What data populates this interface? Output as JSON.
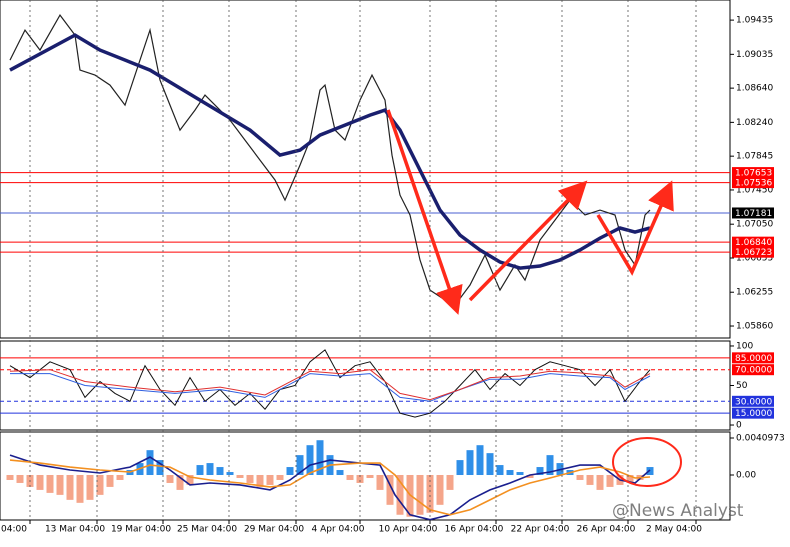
{
  "watermark": "@News Analyst",
  "chart_data": [
    {
      "type": "line",
      "xlim": [
        0,
        730
      ],
      "ylim": [
        1.0572,
        1.0967
      ],
      "yticks": [
        1.09435,
        1.09035,
        {
          "value": 1.0864,
          "label": "1.08640"
        },
        {
          "value": 1.0824,
          "label": "1.08240"
        },
        1.07845,
        {
          "value": 1.0745,
          "label": "1.07450"
        },
        {
          "value": 1.0705,
          "label": "1.07050"
        },
        1.06655,
        1.06255,
        {
          "value": 1.0586,
          "label": "1.05860"
        }
      ],
      "levels": [
        {
          "value": 1.07653,
          "color": "#ff0000"
        },
        {
          "value": 1.07536,
          "color": "#ff0000"
        },
        {
          "value": 1.07181,
          "color": "#4a5fd0",
          "box": "#000000"
        },
        {
          "value": 1.0684,
          "label": "1.06840",
          "color": "#ff0000"
        },
        {
          "value": 1.06723,
          "color": "#ff0000"
        }
      ],
      "series": [
        {
          "color": "#222222",
          "width": 1.2,
          "x": [
            10,
            25,
            40,
            60,
            75,
            80,
            95,
            110,
            125,
            140,
            150,
            160,
            170,
            180,
            195,
            205,
            215,
            230,
            245,
            260,
            275,
            285,
            300,
            310,
            320,
            325,
            335,
            345,
            360,
            372,
            385,
            392,
            400,
            410,
            420,
            430,
            445,
            455,
            470,
            485,
            500,
            515,
            525,
            540,
            555,
            570,
            585,
            600,
            615,
            625,
            635,
            645,
            650
          ],
          "values": [
            1.08968,
            1.09318,
            1.09084,
            1.09493,
            1.0926,
            1.08851,
            1.08792,
            1.08676,
            1.08442,
            1.08968,
            1.09318,
            1.08734,
            1.08442,
            1.0815,
            1.08383,
            1.08559,
            1.08442,
            1.08267,
            1.08033,
            1.07799,
            1.07566,
            1.07332,
            1.07741,
            1.08033,
            1.08617,
            1.08676,
            1.0815,
            1.08033,
            1.085,
            1.08792,
            1.085,
            1.07858,
            1.0739,
            1.07157,
            1.06631,
            1.0628,
            1.06164,
            1.06105,
            1.06339,
            1.06689,
            1.0628,
            1.06573,
            1.06397,
            1.06865,
            1.07098,
            1.07332,
            1.07157,
            1.07215,
            1.07157,
            1.06748,
            1.06573,
            1.07157,
            1.07215
          ]
        },
        {
          "color": "#1a1f6e",
          "width": 3.5,
          "x": [
            10,
            75,
            100,
            150,
            200,
            250,
            280,
            300,
            320,
            345,
            370,
            385,
            400,
            420,
            440,
            460,
            480,
            500,
            520,
            540,
            560,
            580,
            600,
            620,
            635,
            650
          ],
          "values": [
            1.08851,
            1.0926,
            1.09084,
            1.08851,
            1.085,
            1.0815,
            1.07858,
            1.07916,
            1.08091,
            1.08208,
            1.08325,
            1.08383,
            1.0815,
            1.07682,
            1.07215,
            1.06923,
            1.06748,
            1.06608,
            1.06537,
            1.06561,
            1.06631,
            1.06748,
            1.06888,
            1.07005,
            1.06958,
            1.07005
          ]
        }
      ]
    },
    {
      "type": "line",
      "xlim": [
        0,
        730
      ],
      "ylim": [
        -6.3,
        106.3
      ],
      "yticks": [
        100,
        50,
        0
      ],
      "levels": [
        {
          "value": 85,
          "label": "85.0000",
          "color": "#ff0000"
        },
        {
          "value": 70,
          "label": "70.0000",
          "color": "#ff0000",
          "dashed": true
        },
        {
          "value": 30,
          "label": "30.0000",
          "color": "#2233dd",
          "dashed": true
        },
        {
          "value": 15,
          "label": "15.0000",
          "color": "#2233dd"
        }
      ],
      "series": [
        {
          "color": "#111111",
          "width": 1,
          "x": [
            10,
            30,
            50,
            70,
            85,
            100,
            115,
            130,
            145,
            160,
            175,
            190,
            205,
            220,
            235,
            250,
            265,
            280,
            295,
            310,
            325,
            340,
            355,
            370,
            385,
            400,
            415,
            430,
            445,
            460,
            475,
            490,
            505,
            520,
            535,
            550,
            565,
            580,
            595,
            610,
            625,
            640,
            650
          ],
          "values": [
            75,
            60,
            80,
            70,
            35,
            55,
            40,
            30,
            75,
            45,
            25,
            60,
            30,
            45,
            25,
            40,
            20,
            45,
            50,
            80,
            95,
            60,
            75,
            80,
            55,
            15,
            10,
            15,
            30,
            50,
            70,
            45,
            65,
            50,
            70,
            80,
            75,
            70,
            50,
            70,
            30,
            55,
            70
          ]
        },
        {
          "color": "#2f5fe0",
          "width": 1,
          "x": [
            10,
            50,
            85,
            130,
            175,
            220,
            265,
            310,
            340,
            370,
            400,
            430,
            460,
            490,
            520,
            550,
            580,
            610,
            625,
            650
          ],
          "values": [
            65,
            65,
            50,
            45,
            40,
            45,
            35,
            65,
            62,
            65,
            35,
            30,
            45,
            58,
            58,
            65,
            62,
            60,
            45,
            62
          ]
        },
        {
          "color": "#e0302f",
          "width": 1,
          "x": [
            10,
            50,
            85,
            130,
            175,
            220,
            265,
            310,
            340,
            370,
            400,
            430,
            460,
            490,
            520,
            550,
            580,
            610,
            625,
            650
          ],
          "values": [
            68,
            70,
            55,
            48,
            42,
            48,
            38,
            68,
            65,
            70,
            40,
            32,
            45,
            60,
            62,
            68,
            66,
            62,
            48,
            65
          ]
        }
      ]
    },
    {
      "type": "bar",
      "xlim": [
        0,
        730
      ],
      "ylim": [
        -0.00498,
        0.00476
      ],
      "yticks": [
        0.0040973,
        {
          "value": 0,
          "label": "0.00"
        }
      ],
      "xticks": [
        {
          "value": 30,
          "label": "04:00"
        },
        {
          "value": 97,
          "label": "13 Mar 04:00"
        },
        {
          "value": 163,
          "label": "19 Mar 04:00"
        },
        {
          "value": 229,
          "label": "25 Mar 04:00"
        },
        {
          "value": 296,
          "label": "29 Mar 04:00"
        },
        {
          "value": 360,
          "label": "4 Apr 04:00"
        },
        {
          "value": 430,
          "label": "10 Apr 04:00"
        },
        {
          "value": 496,
          "label": "16 Apr 04:00"
        },
        {
          "value": 562,
          "label": "22 Apr 04:00"
        },
        {
          "value": 628,
          "label": "26 Apr 04:00"
        },
        {
          "value": 696,
          "label": "2 May 04:00"
        }
      ],
      "up_color": "#2f8fe8",
      "down_color": "#f5a58a",
      "x": [
        10,
        20,
        30,
        40,
        50,
        60,
        70,
        80,
        90,
        100,
        110,
        120,
        130,
        140,
        150,
        160,
        170,
        180,
        190,
        200,
        210,
        220,
        230,
        240,
        250,
        260,
        270,
        280,
        290,
        300,
        310,
        320,
        330,
        340,
        350,
        360,
        370,
        380,
        390,
        400,
        410,
        420,
        430,
        440,
        450,
        460,
        470,
        480,
        490,
        500,
        510,
        520,
        530,
        540,
        550,
        560,
        570,
        580,
        590,
        600,
        610,
        620,
        630,
        640,
        650
      ],
      "values": [
        -0.00055,
        -0.00088,
        -0.00132,
        -0.00165,
        -0.00198,
        -0.0022,
        -0.00275,
        -0.00308,
        -0.00275,
        -0.0022,
        -0.00132,
        -0.00055,
        0.00055,
        0.00132,
        0.00275,
        0.00165,
        -0.00088,
        -0.00165,
        -0.0011,
        0.0011,
        0.00132,
        0.00088,
        0.00033,
        -0.00033,
        -0.00088,
        -0.00132,
        -0.0011,
        -0.00055,
        0.00088,
        0.0022,
        0.0033,
        0.00385,
        0.0022,
        0.00055,
        -0.00055,
        -0.00088,
        -0.00033,
        -0.00165,
        -0.0033,
        -0.0044,
        -0.00462,
        -0.0044,
        -0.00418,
        -0.0033,
        -0.00165,
        0.00165,
        0.00275,
        0.0033,
        0.00242,
        0.0011,
        0.00055,
        0.00033,
        -0.00033,
        0.00088,
        0.0022,
        0.00132,
        0.00055,
        -0.00055,
        -0.0011,
        -0.00165,
        -0.00132,
        -0.0011,
        -0.00088,
        -0.00055,
        0.00088
      ],
      "series": [
        {
          "color": "#1a1f8e",
          "width": 1.6,
          "x": [
            10,
            40,
            70,
            100,
            130,
            150,
            170,
            190,
            210,
            240,
            270,
            290,
            310,
            330,
            360,
            380,
            395,
            410,
            430,
            450,
            470,
            490,
            510,
            530,
            550,
            580,
            600,
            620,
            635,
            650
          ],
          "values": [
            0.0022,
            0.0011,
            0.00055,
            0.00022,
            0.00088,
            0.00198,
            0.00055,
            -0.0011,
            -0.00088,
            -0.0011,
            -0.00165,
            -0.00055,
            0.0011,
            0.00165,
            0.00132,
            0.0011,
            -0.0022,
            -0.0044,
            -0.00495,
            -0.0044,
            -0.00275,
            -0.00165,
            -0.00088,
            0,
            0.00033,
            0.0011,
            0.0011,
            -0.00055,
            -0.00088,
            0.00055
          ]
        },
        {
          "color": "#f39020",
          "width": 1.6,
          "x": [
            10,
            40,
            70,
            100,
            130,
            150,
            170,
            190,
            210,
            240,
            270,
            290,
            310,
            330,
            360,
            380,
            395,
            410,
            430,
            450,
            470,
            490,
            510,
            530,
            550,
            580,
            600,
            620,
            635,
            650
          ],
          "values": [
            0.00165,
            0.00132,
            0.00088,
            0.00055,
            0.00033,
            0.0011,
            0.00088,
            -0.00022,
            -0.00055,
            -0.00088,
            -0.00132,
            -0.0011,
            0.00022,
            0.0011,
            0.00132,
            0.00132,
            0,
            -0.0022,
            -0.00385,
            -0.0044,
            -0.00385,
            -0.00275,
            -0.00165,
            -0.00088,
            -0.00033,
            0.00055,
            0.00088,
            0.00033,
            -0.00033,
            -0.00022
          ]
        }
      ]
    }
  ]
}
